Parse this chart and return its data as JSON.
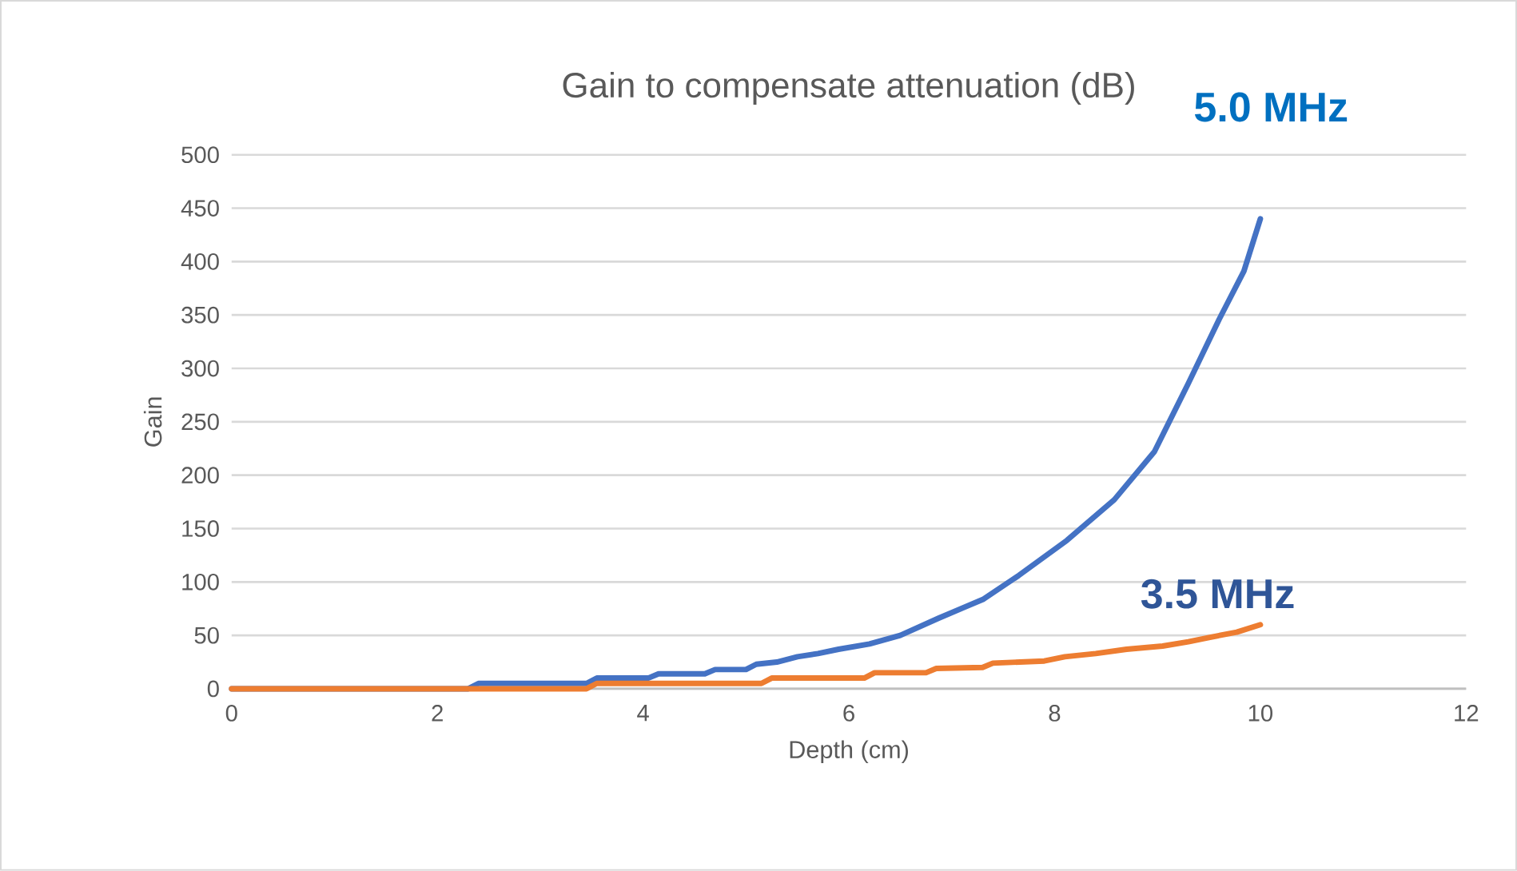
{
  "chart_data": {
    "type": "line",
    "title": "Gain to compensate attenuation (dB)",
    "xlabel": "Depth (cm)",
    "ylabel": "Gain",
    "xlim": [
      0,
      12
    ],
    "xticks": [
      0,
      2,
      4,
      6,
      8,
      10,
      12
    ],
    "ylim": [
      0,
      500
    ],
    "yticks": [
      0,
      50,
      100,
      150,
      200,
      250,
      300,
      350,
      400,
      450,
      500
    ],
    "grid": "y",
    "legend": false,
    "marker": "none",
    "line_style": "solid",
    "series": [
      {
        "name": "5.0 MHz",
        "color": "#4472c4",
        "x": [
          0,
          2.3,
          2.4,
          3.45,
          3.55,
          4.05,
          4.15,
          4.6,
          4.7,
          5.0,
          5.1,
          5.3,
          5.5,
          5.7,
          5.9,
          6.2,
          6.5,
          6.87,
          7.31,
          7.65,
          8.12,
          8.58,
          8.97,
          9.3,
          9.6,
          9.84,
          10
        ],
        "values": [
          0,
          0,
          5,
          5,
          10,
          10,
          14,
          14,
          18,
          18,
          23,
          25,
          30,
          33,
          37,
          42,
          50,
          66,
          84,
          106,
          139,
          177,
          222,
          286,
          346,
          391,
          440
        ]
      },
      {
        "name": "3.5 MHz",
        "color": "#ed7d31",
        "x": [
          0,
          3.45,
          3.55,
          5.15,
          5.25,
          6.15,
          6.25,
          6.75,
          6.85,
          7.3,
          7.4,
          7.9,
          8.1,
          8.4,
          8.7,
          9.05,
          9.3,
          9.5,
          9.77,
          10
        ],
        "values": [
          0,
          0,
          5,
          5,
          10,
          10,
          15,
          15,
          19,
          20,
          24,
          26,
          30,
          33,
          37,
          40,
          44,
          48,
          53,
          60
        ]
      }
    ]
  }
}
